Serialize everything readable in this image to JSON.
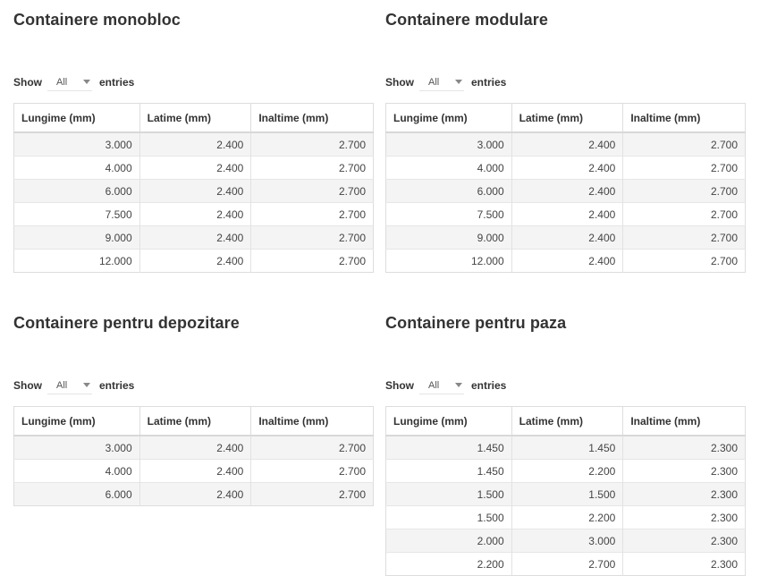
{
  "length_prefix": "Show",
  "length_suffix": "entries",
  "length_value": "All",
  "columns": [
    "Lungime (mm)",
    "Latime (mm)",
    "Inaltime (mm)"
  ],
  "tables": [
    {
      "title": "Containere monobloc",
      "rows": [
        [
          "3.000",
          "2.400",
          "2.700"
        ],
        [
          "4.000",
          "2.400",
          "2.700"
        ],
        [
          "6.000",
          "2.400",
          "2.700"
        ],
        [
          "7.500",
          "2.400",
          "2.700"
        ],
        [
          "9.000",
          "2.400",
          "2.700"
        ],
        [
          "12.000",
          "2.400",
          "2.700"
        ]
      ]
    },
    {
      "title": "Containere modulare",
      "rows": [
        [
          "3.000",
          "2.400",
          "2.700"
        ],
        [
          "4.000",
          "2.400",
          "2.700"
        ],
        [
          "6.000",
          "2.400",
          "2.700"
        ],
        [
          "7.500",
          "2.400",
          "2.700"
        ],
        [
          "9.000",
          "2.400",
          "2.700"
        ],
        [
          "12.000",
          "2.400",
          "2.700"
        ]
      ]
    },
    {
      "title": "Containere pentru depozitare",
      "rows": [
        [
          "3.000",
          "2.400",
          "2.700"
        ],
        [
          "4.000",
          "2.400",
          "2.700"
        ],
        [
          "6.000",
          "2.400",
          "2.700"
        ]
      ]
    },
    {
      "title": "Containere pentru paza",
      "rows": [
        [
          "1.450",
          "1.450",
          "2.300"
        ],
        [
          "1.450",
          "2.200",
          "2.300"
        ],
        [
          "1.500",
          "1.500",
          "2.300"
        ],
        [
          "1.500",
          "2.200",
          "2.300"
        ],
        [
          "2.000",
          "3.000",
          "2.300"
        ],
        [
          "2.200",
          "2.700",
          "2.300"
        ]
      ]
    }
  ]
}
